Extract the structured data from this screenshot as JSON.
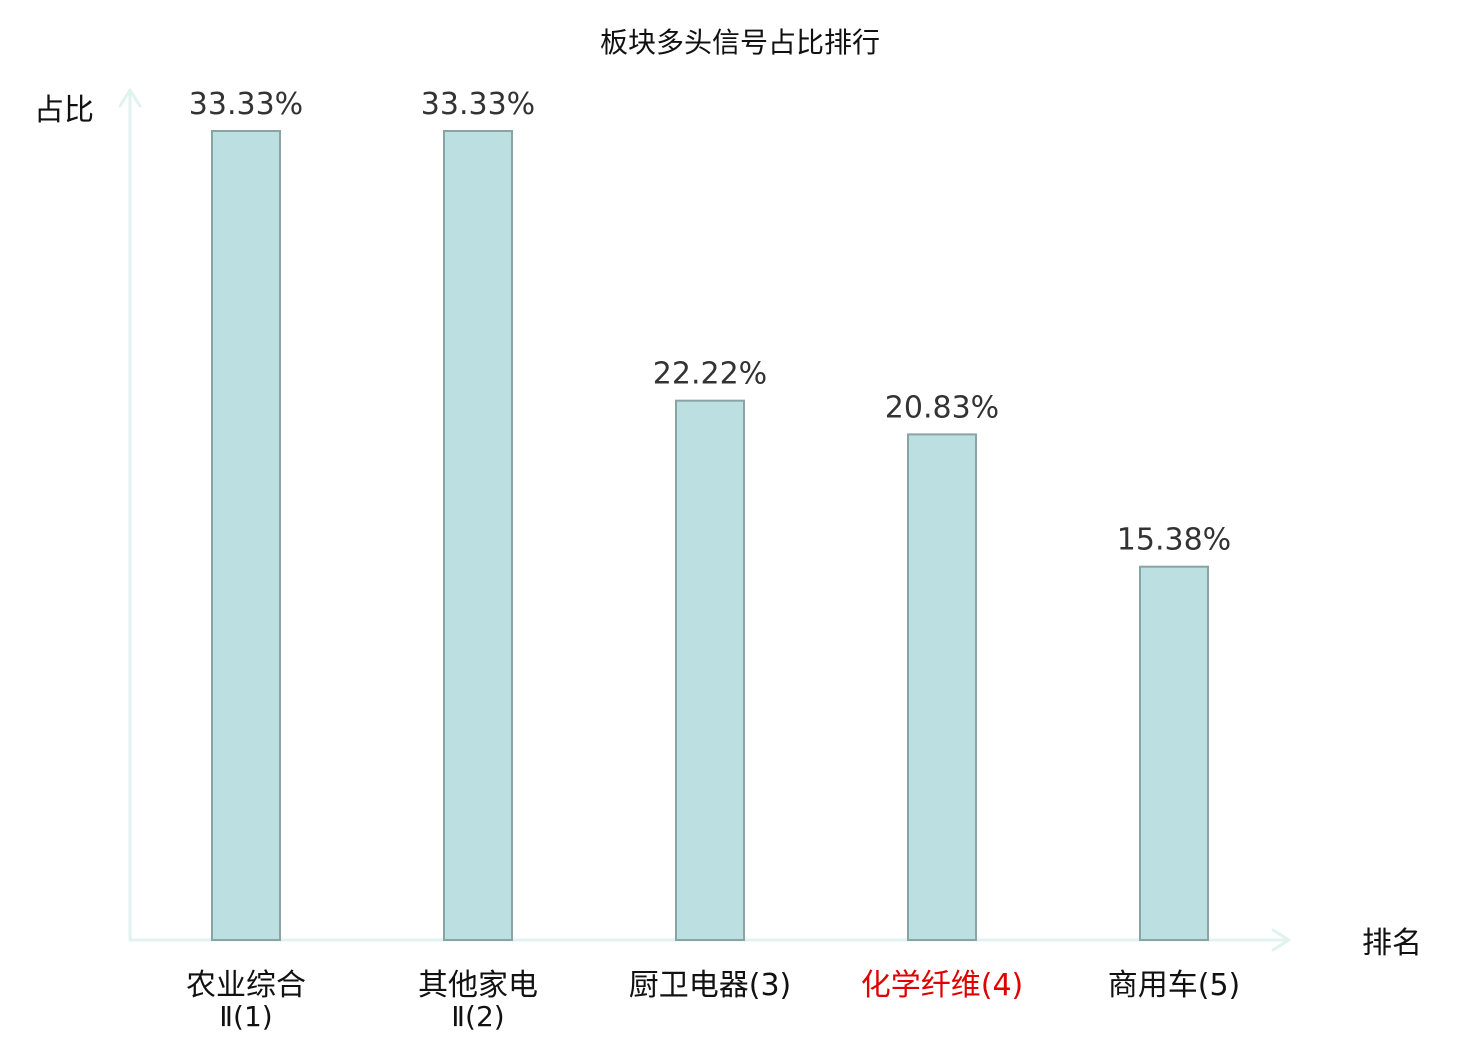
{
  "chart_data": {
    "type": "bar",
    "title": "板块多头信号占比排行",
    "ylabel": "占比",
    "xlabel": "排名",
    "ylim": [
      0,
      35
    ],
    "grid": false,
    "legend": "none",
    "categories": [
      {
        "line1": "农业综合",
        "line2": "Ⅱ(1)",
        "highlight": false
      },
      {
        "line1": "其他家电",
        "line2": "Ⅱ(2)",
        "highlight": false
      },
      {
        "line1": "厨卫电器",
        "suffix": "(3)",
        "highlight": false
      },
      {
        "line1": "化学纤维",
        "suffix": "(4)",
        "highlight": true
      },
      {
        "line1": "商用车",
        "suffix": "(5)",
        "highlight": false
      }
    ],
    "values": [
      33.33,
      33.33,
      22.22,
      20.83,
      15.38
    ],
    "value_labels": [
      "33.33%",
      "33.33%",
      "22.22%",
      "20.83%",
      "15.38%"
    ]
  },
  "colors": {
    "bar_fill": "#bce0e2",
    "bar_stroke": "#8aa3a4",
    "axis": "#e1f3f0",
    "text": "#333333",
    "label_text": "#111111",
    "highlight": "#e00000"
  }
}
